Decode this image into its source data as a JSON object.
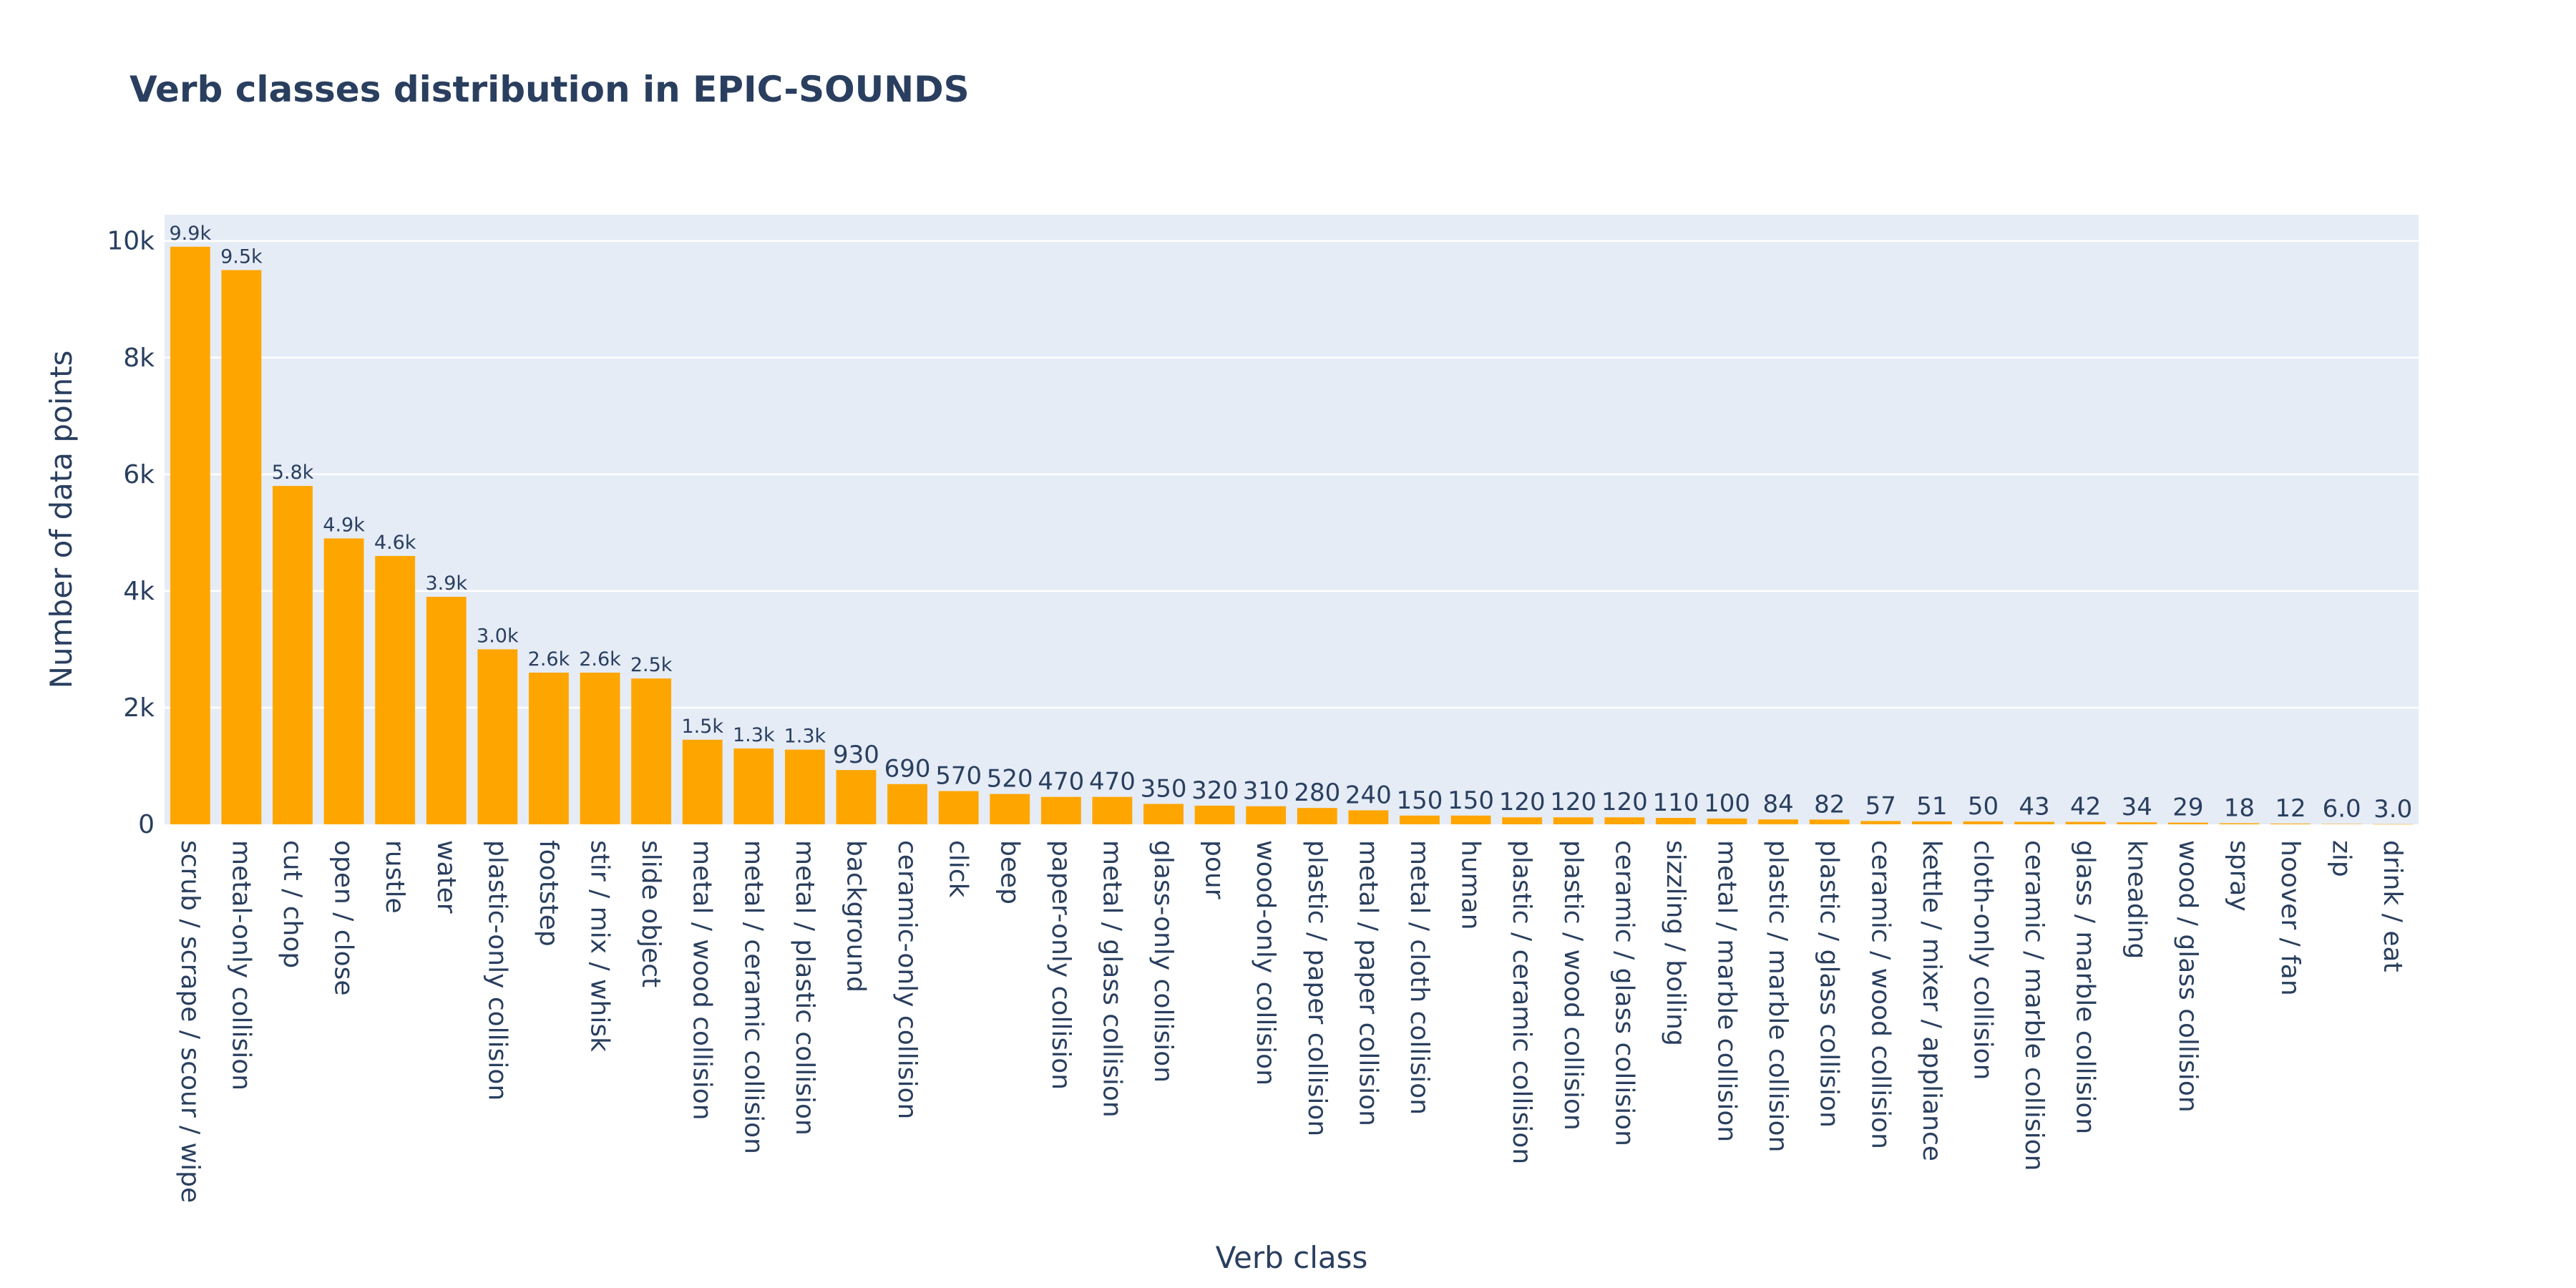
{
  "chart_data": {
    "type": "bar",
    "title": "Verb classes distribution in EPIC-SOUNDS",
    "xlabel": "Verb class",
    "ylabel": "Number of data points",
    "ylim": [
      0,
      10450
    ],
    "yticks": [
      {
        "value": 0,
        "label": "0"
      },
      {
        "value": 2000,
        "label": "2k"
      },
      {
        "value": 4000,
        "label": "4k"
      },
      {
        "value": 6000,
        "label": "6k"
      },
      {
        "value": 8000,
        "label": "8k"
      },
      {
        "value": 10000,
        "label": "10k"
      }
    ],
    "grid": true,
    "bar_color": "#FFA500",
    "plot_bg_color": "#E5ECF6",
    "categories": [
      "scrub / scrape / scour / wipe",
      "metal-only collision",
      "cut / chop",
      "open / close",
      "rustle",
      "water",
      "plastic-only collision",
      "footstep",
      "stir / mix / whisk",
      "slide object",
      "metal / wood collision",
      "metal / ceramic collision",
      "metal / plastic collision",
      "background",
      "ceramic-only collision",
      "click",
      "beep",
      "paper-only collision",
      "metal / glass collision",
      "glass-only collision",
      "pour",
      "wood-only collision",
      "plastic / paper collision",
      "metal / paper collision",
      "metal / cloth collision",
      "human",
      "plastic / ceramic collision",
      "plastic / wood collision",
      "ceramic / glass collision",
      "sizzling / boiling",
      "metal / marble collision",
      "plastic / marble collision",
      "plastic / glass collision",
      "ceramic / wood collision",
      "kettle / mixer / appliance",
      "cloth-only collision",
      "ceramic / marble collision",
      "glass / marble collision",
      "kneading",
      "wood / glass collision",
      "spray",
      "hoover / fan",
      "zip",
      "drink / eat"
    ],
    "values": [
      9900,
      9500,
      5800,
      4900,
      4600,
      3900,
      3000,
      2600,
      2600,
      2500,
      1450,
      1300,
      1280,
      930,
      690,
      570,
      520,
      470,
      470,
      350,
      320,
      310,
      280,
      240,
      150,
      150,
      120,
      120,
      120,
      110,
      100,
      84,
      82,
      57,
      51,
      50,
      43,
      42,
      34,
      29,
      18,
      12,
      6,
      3
    ],
    "labels": [
      "9.9k",
      "9.5k",
      "5.8k",
      "4.9k",
      "4.6k",
      "3.9k",
      "3.0k",
      "2.6k",
      "2.6k",
      "2.5k",
      "1.5k",
      "1.3k",
      "1.3k",
      "930",
      "690",
      "570",
      "520",
      "470",
      "470",
      "350",
      "320",
      "310",
      "280",
      "240",
      "150",
      "150",
      "120",
      "120",
      "120",
      "110",
      "100",
      "84",
      "82",
      "57",
      "51",
      "50",
      "43",
      "42",
      "34",
      "29",
      "18",
      "12",
      "6.0",
      "3.0"
    ]
  }
}
